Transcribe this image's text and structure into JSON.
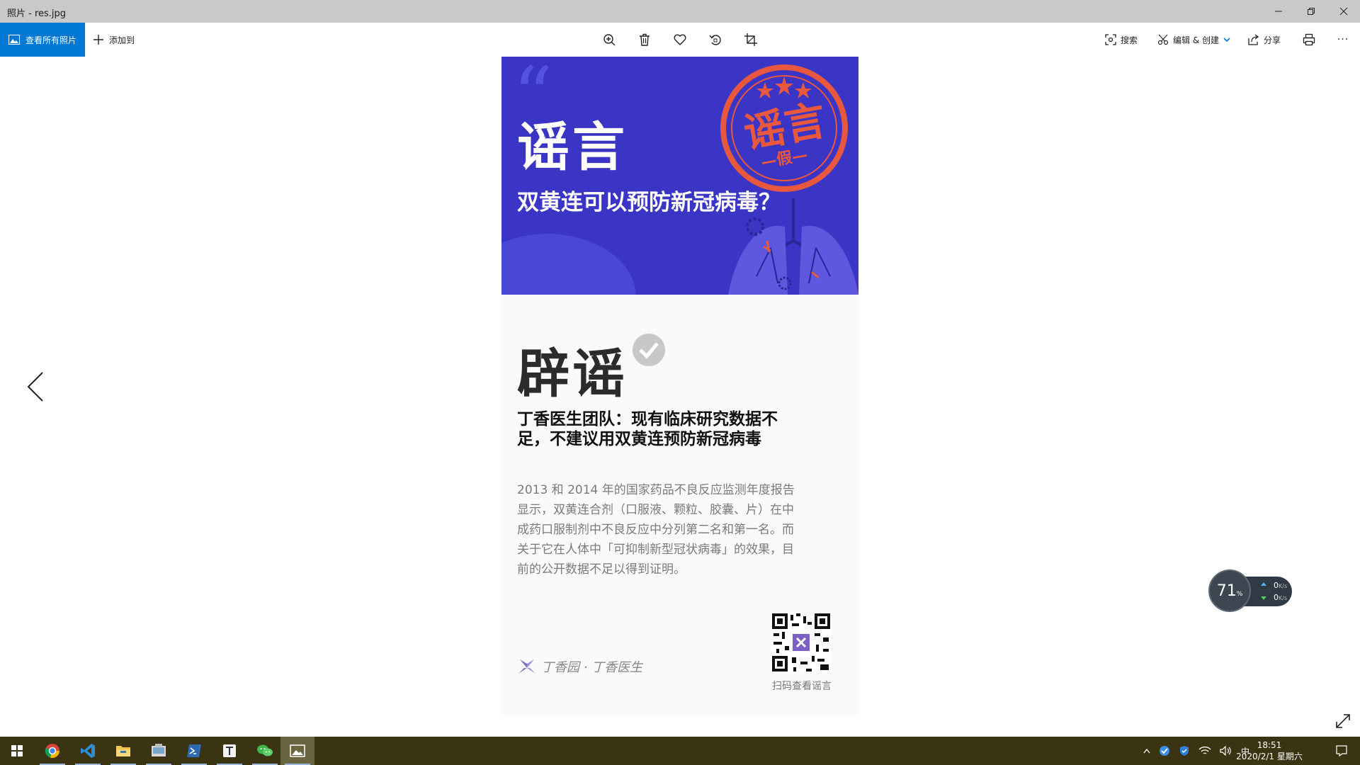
{
  "window": {
    "title": "照片 - res.jpg",
    "controls": [
      "minimize-icon",
      "restore-icon",
      "close-icon"
    ]
  },
  "toolbar": {
    "view_all_label": "查看所有照片",
    "add_to_label": "添加到",
    "center_icons": [
      "zoom-in-icon",
      "delete-icon",
      "heart-icon",
      "rotate-icon",
      "crop-icon"
    ],
    "search_label": "搜索",
    "edit_create_label": "编辑 & 创建",
    "share_label": "分享",
    "print_icon": "print-icon",
    "more_label": "···",
    "accent_color": "#0078d4"
  },
  "image": {
    "rumor": {
      "quote_mark": "“",
      "label": "谣言",
      "question": "双黄连可以预防新冠病毒？",
      "stamp_text": "谣言",
      "stamp_sub": "—假—",
      "background_color": "#3a35c4",
      "stamp_color": "#e8583f"
    },
    "debunk": {
      "label": "辟谣",
      "heading": "丁香医生团队：现有临床研究数据不足，不建议用双黄连预防新冠病毒",
      "body": "2013 和 2014 年的国家药品不良反应监测年度报告显示，双黄连合剂（口服液、颗粒、胶囊、片）在中成药口服制剂中不良反应中分列第二名和第一名。而关于它在人体中「可抑制新型冠状病毒」的效果，目前的公开数据不足以得到证明。",
      "brand_text": "丁香园 · 丁香医生",
      "qr_label": "扫码查看谣言"
    }
  },
  "network_monitor": {
    "percent": "71",
    "percent_unit": "%",
    "upload": "0",
    "download": "0",
    "unit": "K/s"
  },
  "taskbar": {
    "apps": [
      "windows-start-icon",
      "chrome-icon",
      "vscode-icon",
      "file-explorer-icon",
      "photos-manager-icon",
      "powershell-icon",
      "typora-icon",
      "wechat-icon",
      "photos-icon"
    ],
    "ime": "中",
    "time": "18:51",
    "date": "2020/2/1 星期六"
  }
}
